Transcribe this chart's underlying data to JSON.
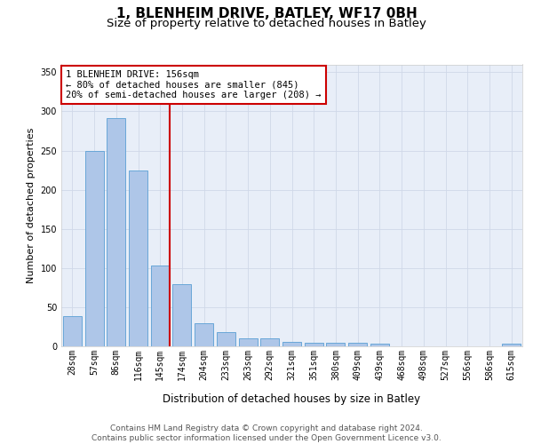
{
  "title1": "1, BLENHEIM DRIVE, BATLEY, WF17 0BH",
  "title2": "Size of property relative to detached houses in Batley",
  "xlabel": "Distribution of detached houses by size in Batley",
  "ylabel": "Number of detached properties",
  "bar_labels": [
    "28sqm",
    "57sqm",
    "86sqm",
    "116sqm",
    "145sqm",
    "174sqm",
    "204sqm",
    "233sqm",
    "263sqm",
    "292sqm",
    "321sqm",
    "351sqm",
    "380sqm",
    "409sqm",
    "439sqm",
    "468sqm",
    "498sqm",
    "527sqm",
    "556sqm",
    "586sqm",
    "615sqm"
  ],
  "bar_values": [
    38,
    250,
    291,
    225,
    103,
    79,
    29,
    18,
    10,
    10,
    6,
    5,
    4,
    4,
    3,
    0,
    0,
    0,
    0,
    0,
    3
  ],
  "bar_color": "#aec6e8",
  "bar_edge_color": "#5a9fd4",
  "vline_color": "#cc0000",
  "annotation_text": "1 BLENHEIM DRIVE: 156sqm\n← 80% of detached houses are smaller (845)\n20% of semi-detached houses are larger (208) →",
  "annotation_box_color": "#ffffff",
  "annotation_box_edge_color": "#cc0000",
  "ylim": [
    0,
    360
  ],
  "yticks": [
    0,
    50,
    100,
    150,
    200,
    250,
    300,
    350
  ],
  "grid_color": "#d0d8e8",
  "background_color": "#e8eef8",
  "footer_text": "Contains HM Land Registry data © Crown copyright and database right 2024.\nContains public sector information licensed under the Open Government Licence v3.0.",
  "title1_fontsize": 11,
  "title2_fontsize": 9.5,
  "xlabel_fontsize": 8.5,
  "ylabel_fontsize": 8,
  "tick_fontsize": 7,
  "annotation_fontsize": 7.5,
  "footer_fontsize": 6.5
}
